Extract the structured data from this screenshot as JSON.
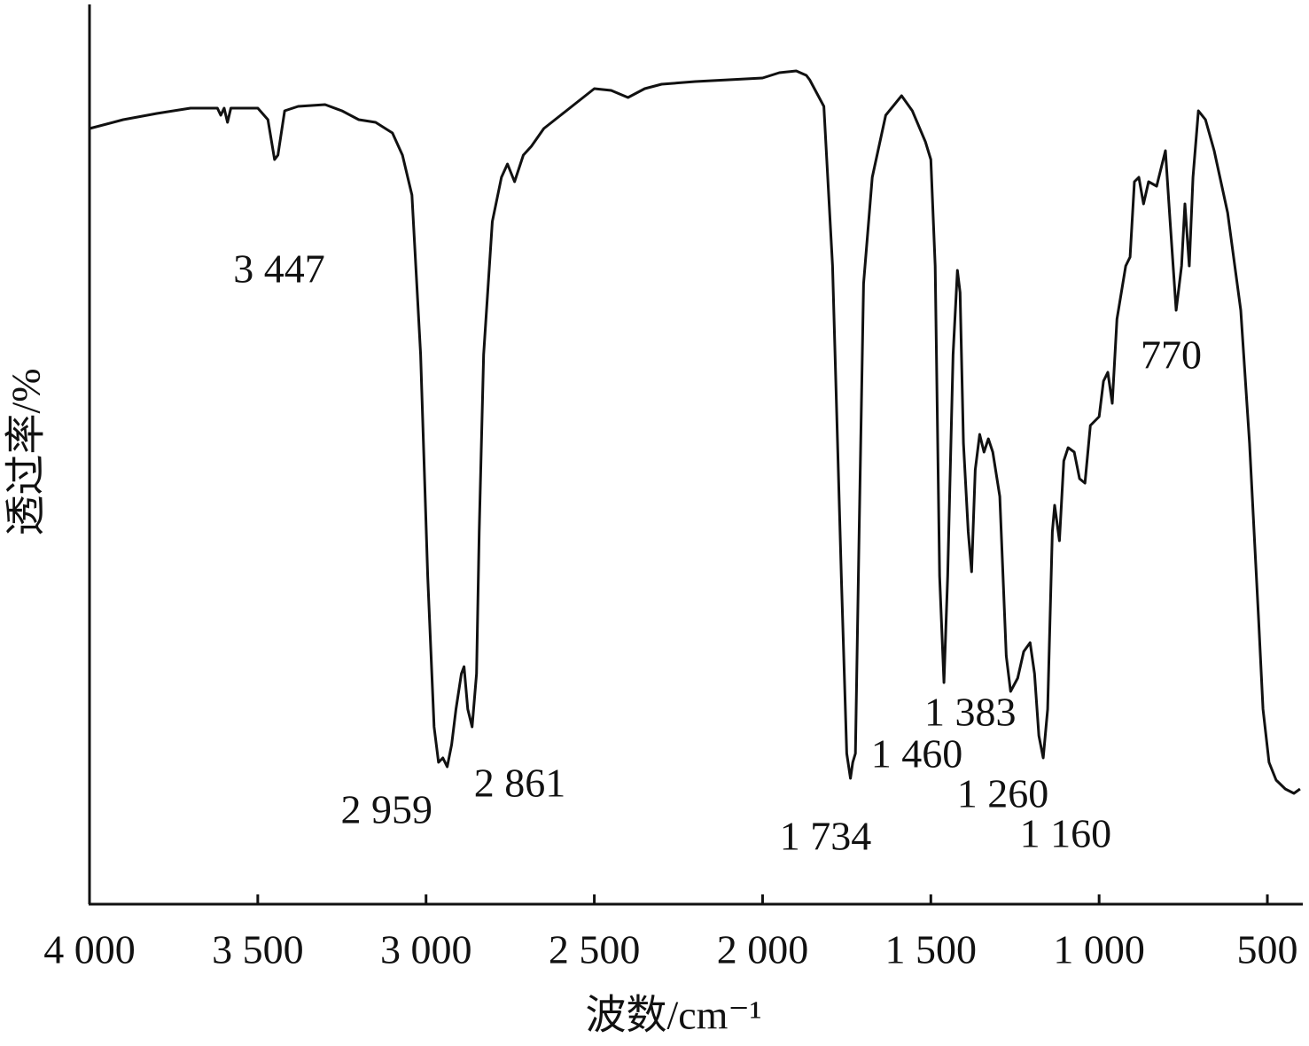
{
  "chart_data": {
    "type": "line",
    "x_label": "波数/cm⁻¹",
    "y_label": "透过率/%",
    "xlim": [
      4000,
      400
    ],
    "ylim": [
      0,
      100
    ],
    "xticks": [
      {
        "value": 4000,
        "label": "4 000"
      },
      {
        "value": 3500,
        "label": "3 500"
      },
      {
        "value": 3000,
        "label": "3 000"
      },
      {
        "value": 2500,
        "label": "2 500"
      },
      {
        "value": 2000,
        "label": "2 000"
      },
      {
        "value": 1500,
        "label": "1 500"
      },
      {
        "value": 1000,
        "label": "1 000"
      },
      500
    ],
    "annotations": [
      {
        "value": 3447,
        "label": "3 447"
      },
      {
        "value": 2959,
        "label": "2 959"
      },
      {
        "value": 2861,
        "label": "2 861"
      },
      {
        "value": 1734,
        "label": "1 734"
      },
      {
        "value": 1460,
        "label": "1 460"
      },
      {
        "value": 1383,
        "label": "1 383"
      },
      {
        "value": 1260,
        "label": "1 260"
      },
      {
        "value": 1160,
        "label": "1 160"
      },
      {
        "value": 770,
        "label": "770"
      }
    ],
    "series": [
      {
        "color": "#111111",
        "x": [
          4000,
          3900,
          3800,
          3700,
          3620,
          3610,
          3600,
          3590,
          3580,
          3500,
          3470,
          3450,
          3440,
          3420,
          3380,
          3300,
          3250,
          3200,
          3150,
          3100,
          3070,
          3042,
          3016,
          2995,
          2976,
          2963,
          2950,
          2937,
          2924,
          2911,
          2895,
          2887,
          2876,
          2863,
          2850,
          2842,
          2829,
          2803,
          2776,
          2758,
          2737,
          2711,
          2687,
          2650,
          2600,
          2550,
          2500,
          2450,
          2400,
          2350,
          2300,
          2200,
          2100,
          2000,
          1950,
          1900,
          1870,
          1860,
          1818,
          1792,
          1766,
          1750,
          1739,
          1732,
          1724,
          1713,
          1700,
          1674,
          1634,
          1587,
          1555,
          1516,
          1500,
          1487,
          1474,
          1461,
          1450,
          1434,
          1421,
          1413,
          1403,
          1389,
          1379,
          1368,
          1355,
          1342,
          1329,
          1316,
          1295,
          1276,
          1263,
          1242,
          1224,
          1205,
          1192,
          1179,
          1166,
          1153,
          1139,
          1132,
          1118,
          1105,
          1092,
          1074,
          1058,
          1042,
          1026,
          1000,
          987,
          974,
          961,
          947,
          921,
          908,
          895,
          882,
          868,
          853,
          829,
          803,
          789,
          771,
          755,
          745,
          732,
          721,
          705,
          684,
          658,
          618,
          579,
          553,
          526,
          513,
          495,
          474,
          447,
          421,
          403
        ],
        "values": [
          87.5,
          88.5,
          89.2,
          89.8,
          89.8,
          89.0,
          89.8,
          88.2,
          89.8,
          89.8,
          88.5,
          84.0,
          84.5,
          89.5,
          90.0,
          90.2,
          89.5,
          88.5,
          88.2,
          87.0,
          84.5,
          80.0,
          62.0,
          37.0,
          20.0,
          16.0,
          16.5,
          15.5,
          18.0,
          22.0,
          26.0,
          26.8,
          22.0,
          20.0,
          26.0,
          42.0,
          62.0,
          77.0,
          82.0,
          83.5,
          81.5,
          84.5,
          85.5,
          87.5,
          89.0,
          90.5,
          92.0,
          91.8,
          91.0,
          92.0,
          92.5,
          92.8,
          93.0,
          93.2,
          93.8,
          94.0,
          93.5,
          93.0,
          90.0,
          72.0,
          37.0,
          17.0,
          14.2,
          16.0,
          17.0,
          42.0,
          70.0,
          82.0,
          89.0,
          91.2,
          89.5,
          86.0,
          84.0,
          72.0,
          37.0,
          25.0,
          37.0,
          62.0,
          71.5,
          69.0,
          52.0,
          42.0,
          37.5,
          49.0,
          53.0,
          51.0,
          52.5,
          51.0,
          46.0,
          28.0,
          24.0,
          25.5,
          28.5,
          29.5,
          26.0,
          19.0,
          16.5,
          22.0,
          42.0,
          45.0,
          41.0,
          50.0,
          51.5,
          51.0,
          48.0,
          47.5,
          54.0,
          55.0,
          59.0,
          60.0,
          56.5,
          66.0,
          72.0,
          73.0,
          81.5,
          82.0,
          79.0,
          81.5,
          81.0,
          85.0,
          77.0,
          67.0,
          72.0,
          79.0,
          72.0,
          82.0,
          89.5,
          88.5,
          85.0,
          78.0,
          67.0,
          52.0,
          32.0,
          22.0,
          16.0,
          14.0,
          13.0,
          12.5,
          13.0
        ]
      }
    ]
  }
}
